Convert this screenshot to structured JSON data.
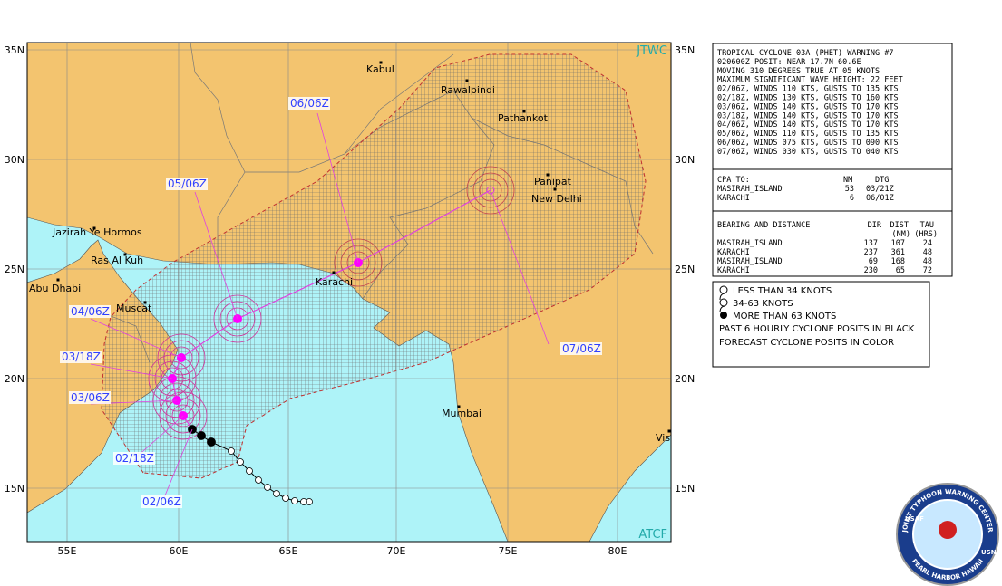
{
  "map": {
    "watermark_top": "JTWC",
    "watermark_bottom": "ATCF",
    "lat_labels": [
      "35N",
      "30N",
      "25N",
      "20N",
      "15N"
    ],
    "lon_labels": [
      "55E",
      "60E",
      "65E",
      "70E",
      "75E",
      "80E"
    ],
    "places": [
      "Kabul",
      "Rawalpindi",
      "Pathankot",
      "Panipat",
      "New Delhi",
      "Karachi",
      "Mumbai",
      "Vis",
      "Jazirah Ye Hormos",
      "Ras Al Kuh",
      "Abu Dhabi",
      "Muscat"
    ],
    "track_labels": [
      "07/06Z",
      "06/06Z",
      "05/06Z",
      "04/06Z",
      "03/18Z",
      "03/06Z",
      "02/18Z",
      "02/06Z"
    ]
  },
  "warning": {
    "lines": [
      "TROPICAL CYCLONE 03A (PHET) WARNING #7",
      "020600Z POSIT: NEAR 17.7N 60.6E",
      "MOVING 310 DEGREES TRUE AT 05 KNOTS",
      "MAXIMUM SIGNIFICANT WAVE HEIGHT: 22 FEET",
      "02/06Z, WINDS 110 KTS, GUSTS TO 135 KTS",
      "02/18Z, WINDS 130 KTS, GUSTS TO 160 KTS",
      "03/06Z, WINDS 140 KTS, GUSTS TO 170 KTS",
      "03/18Z, WINDS 140 KTS, GUSTS TO 170 KTS",
      "04/06Z, WINDS 140 KTS, GUSTS TO 170 KTS",
      "05/06Z, WINDS 110 KTS, GUSTS TO 135 KTS",
      "06/06Z, WINDS 075 KTS, GUSTS TO 090 KTS",
      "07/06Z, WINDS 030 KTS, GUSTS TO 040 KTS"
    ]
  },
  "cpa": {
    "header": [
      "CPA TO:",
      "NM",
      "DTG"
    ],
    "rows": [
      [
        "MASIRAH_ISLAND",
        53,
        "03/21Z"
      ],
      [
        "KARACHI",
        6,
        "06/01Z"
      ]
    ]
  },
  "bearing": {
    "header": [
      "BEARING AND DISTANCE",
      "DIR",
      "DIST",
      "TAU"
    ],
    "subheader": [
      "(NM)",
      "(HRS)"
    ],
    "rows": [
      [
        "MASIRAH_ISLAND",
        137,
        107,
        24
      ],
      [
        "KARACHI",
        237,
        361,
        48
      ],
      [
        "MASIRAH_ISLAND",
        69,
        168,
        48
      ],
      [
        "KARACHI",
        230,
        65,
        72
      ]
    ]
  },
  "legend": [
    "LESS THAN 34 KNOTS",
    "34-63 KNOTS",
    "MORE THAN 63 KNOTS",
    "PAST 6 HOURLY CYCLONE POSITS IN BLACK",
    "FORECAST CYCLONE POSITS IN COLOR"
  ],
  "logo": [
    "USAF",
    "JOINT TYPHOON WARNING CENTER",
    "PEARL HARBOR HAWAII",
    "USN"
  ]
}
